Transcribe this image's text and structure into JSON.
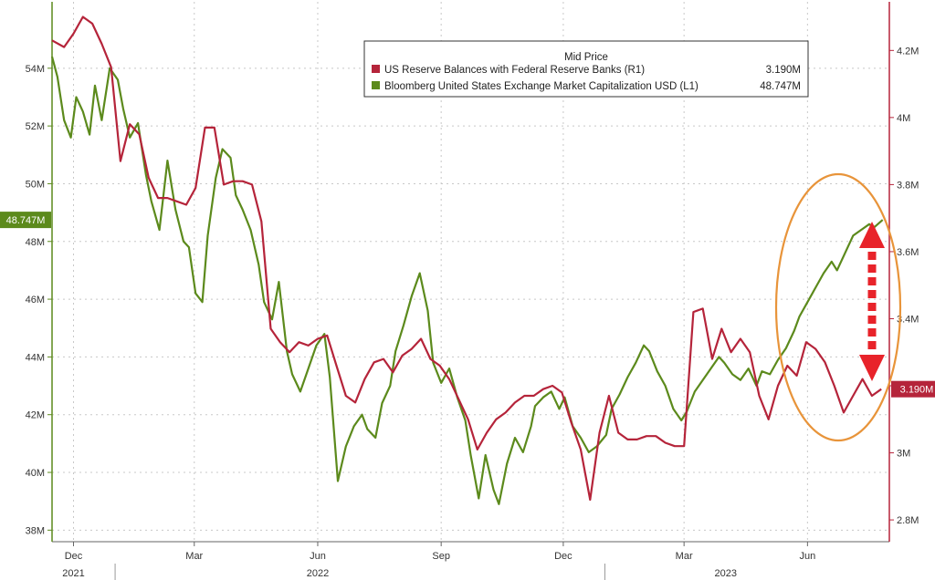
{
  "chart_data": {
    "type": "line",
    "legend": {
      "title": "Mid Price",
      "placement": "top-right",
      "entries": [
        {
          "label": "US Reserve Balances with Federal Reserve Banks  (R1)",
          "value": "3.190M",
          "color": "#b5243a"
        },
        {
          "label": "Bloomberg United States Exchange Market Capitalization USD  (L1)",
          "value": "48.747M",
          "color": "#5c8a1c"
        }
      ]
    },
    "left_axis": {
      "min": 37.6,
      "max": 56.3,
      "ticks": [
        38,
        40,
        42,
        44,
        46,
        48,
        50,
        52,
        54
      ],
      "tick_labels": [
        "38M",
        "40M",
        "42M",
        "44M",
        "46M",
        "48M",
        "50M",
        "52M",
        "54M"
      ],
      "last_value": 48.747,
      "last_label": "48.747M",
      "color": "#5c8a1c"
    },
    "right_axis": {
      "min": 2.735,
      "max": 4.345,
      "ticks": [
        2.8,
        3.0,
        3.2,
        3.4,
        3.6,
        3.8,
        4.0,
        4.2
      ],
      "tick_labels": [
        "2.8M",
        "3M",
        "",
        "3.4M",
        "3.6M",
        "3.8M",
        "4M",
        "4.2M"
      ],
      "last_value": 3.19,
      "last_label": "3.190M",
      "color": "#b5243a"
    },
    "x_axis": {
      "start": "2021-11-15",
      "end": "2023-08-01",
      "month_ticks": [
        {
          "date": "2021-12-01",
          "label": "Dec"
        },
        {
          "date": "2022-03-01",
          "label": "Mar"
        },
        {
          "date": "2022-06-01",
          "label": "Jun"
        },
        {
          "date": "2022-09-01",
          "label": "Sep"
        },
        {
          "date": "2022-12-01",
          "label": "Dec"
        },
        {
          "date": "2023-03-01",
          "label": "Mar"
        },
        {
          "date": "2023-06-01",
          "label": "Jun"
        }
      ],
      "year_labels": [
        {
          "date": "2021-12-01",
          "label": "2021"
        },
        {
          "date": "2022-06-01",
          "label": "2022"
        },
        {
          "date": "2023-04-01",
          "label": "2023"
        }
      ],
      "year_dividers": [
        "2022-01-01",
        "2023-01-01"
      ]
    },
    "grid": true,
    "series": [
      {
        "name": "Bloomberg United States Exchange Market Capitalization USD",
        "axis": "left",
        "color": "#5c8a1c",
        "points": [
          [
            "2021-11-15",
            54.4
          ],
          [
            "2021-11-19",
            53.7
          ],
          [
            "2021-11-24",
            52.2
          ],
          [
            "2021-11-29",
            51.6
          ],
          [
            "2021-12-03",
            53.0
          ],
          [
            "2021-12-08",
            52.5
          ],
          [
            "2021-12-13",
            51.7
          ],
          [
            "2021-12-17",
            53.4
          ],
          [
            "2021-12-22",
            52.2
          ],
          [
            "2021-12-28",
            54.0
          ],
          [
            "2022-01-03",
            53.6
          ],
          [
            "2022-01-07",
            52.6
          ],
          [
            "2022-01-12",
            51.6
          ],
          [
            "2022-01-18",
            52.1
          ],
          [
            "2022-01-24",
            50.3
          ],
          [
            "2022-01-28",
            49.4
          ],
          [
            "2022-02-03",
            48.4
          ],
          [
            "2022-02-09",
            50.8
          ],
          [
            "2022-02-15",
            49.1
          ],
          [
            "2022-02-21",
            48.0
          ],
          [
            "2022-02-25",
            47.8
          ],
          [
            "2022-03-02",
            46.2
          ],
          [
            "2022-03-07",
            45.9
          ],
          [
            "2022-03-11",
            48.2
          ],
          [
            "2022-03-17",
            50.2
          ],
          [
            "2022-03-22",
            51.2
          ],
          [
            "2022-03-28",
            50.9
          ],
          [
            "2022-04-01",
            49.6
          ],
          [
            "2022-04-06",
            49.1
          ],
          [
            "2022-04-12",
            48.4
          ],
          [
            "2022-04-18",
            47.2
          ],
          [
            "2022-04-22",
            45.9
          ],
          [
            "2022-04-28",
            45.3
          ],
          [
            "2022-05-03",
            46.6
          ],
          [
            "2022-05-09",
            44.2
          ],
          [
            "2022-05-13",
            43.4
          ],
          [
            "2022-05-19",
            42.8
          ],
          [
            "2022-05-25",
            43.6
          ],
          [
            "2022-05-31",
            44.4
          ],
          [
            "2022-06-06",
            44.8
          ],
          [
            "2022-06-10",
            43.3
          ],
          [
            "2022-06-16",
            39.7
          ],
          [
            "2022-06-22",
            40.9
          ],
          [
            "2022-06-28",
            41.6
          ],
          [
            "2022-07-04",
            42.0
          ],
          [
            "2022-07-08",
            41.5
          ],
          [
            "2022-07-14",
            41.2
          ],
          [
            "2022-07-19",
            42.4
          ],
          [
            "2022-07-25",
            43.0
          ],
          [
            "2022-07-29",
            44.2
          ],
          [
            "2022-08-04",
            45.1
          ],
          [
            "2022-08-10",
            46.1
          ],
          [
            "2022-08-16",
            46.9
          ],
          [
            "2022-08-22",
            45.6
          ],
          [
            "2022-08-26",
            43.8
          ],
          [
            "2022-09-01",
            43.1
          ],
          [
            "2022-09-07",
            43.6
          ],
          [
            "2022-09-13",
            42.6
          ],
          [
            "2022-09-19",
            41.8
          ],
          [
            "2022-09-23",
            40.6
          ],
          [
            "2022-09-29",
            39.1
          ],
          [
            "2022-10-04",
            40.6
          ],
          [
            "2022-10-10",
            39.4
          ],
          [
            "2022-10-14",
            38.9
          ],
          [
            "2022-10-20",
            40.3
          ],
          [
            "2022-10-26",
            41.2
          ],
          [
            "2022-11-01",
            40.7
          ],
          [
            "2022-11-07",
            41.6
          ],
          [
            "2022-11-10",
            42.3
          ],
          [
            "2022-11-16",
            42.6
          ],
          [
            "2022-11-22",
            42.8
          ],
          [
            "2022-11-28",
            42.2
          ],
          [
            "2022-12-02",
            42.6
          ],
          [
            "2022-12-08",
            41.6
          ],
          [
            "2022-12-14",
            41.2
          ],
          [
            "2022-12-20",
            40.7
          ],
          [
            "2022-12-26",
            40.9
          ],
          [
            "2023-01-02",
            41.3
          ],
          [
            "2023-01-06",
            42.2
          ],
          [
            "2023-01-12",
            42.7
          ],
          [
            "2023-01-18",
            43.3
          ],
          [
            "2023-01-24",
            43.8
          ],
          [
            "2023-01-30",
            44.4
          ],
          [
            "2023-02-03",
            44.2
          ],
          [
            "2023-02-09",
            43.5
          ],
          [
            "2023-02-15",
            43.0
          ],
          [
            "2023-02-21",
            42.2
          ],
          [
            "2023-02-27",
            41.8
          ],
          [
            "2023-03-03",
            42.1
          ],
          [
            "2023-03-09",
            42.8
          ],
          [
            "2023-03-15",
            43.2
          ],
          [
            "2023-03-21",
            43.6
          ],
          [
            "2023-03-27",
            44.0
          ],
          [
            "2023-03-31",
            43.8
          ],
          [
            "2023-04-06",
            43.4
          ],
          [
            "2023-04-12",
            43.2
          ],
          [
            "2023-04-18",
            43.6
          ],
          [
            "2023-04-24",
            43.0
          ],
          [
            "2023-04-28",
            43.5
          ],
          [
            "2023-05-04",
            43.4
          ],
          [
            "2023-05-10",
            43.9
          ],
          [
            "2023-05-16",
            44.3
          ],
          [
            "2023-05-22",
            44.9
          ],
          [
            "2023-05-26",
            45.4
          ],
          [
            "2023-06-01",
            45.9
          ],
          [
            "2023-06-07",
            46.4
          ],
          [
            "2023-06-13",
            46.9
          ],
          [
            "2023-06-19",
            47.3
          ],
          [
            "2023-06-23",
            47.0
          ],
          [
            "2023-06-29",
            47.6
          ],
          [
            "2023-07-05",
            48.2
          ],
          [
            "2023-07-11",
            48.4
          ],
          [
            "2023-07-17",
            48.6
          ],
          [
            "2023-07-21",
            48.5
          ],
          [
            "2023-07-27",
            48.747
          ]
        ]
      },
      {
        "name": "US Reserve Balances with Federal Reserve Banks",
        "axis": "right",
        "color": "#b5243a",
        "points": [
          [
            "2021-11-15",
            4.23
          ],
          [
            "2021-11-24",
            4.21
          ],
          [
            "2021-12-01",
            4.25
          ],
          [
            "2021-12-08",
            4.3
          ],
          [
            "2021-12-15",
            4.28
          ],
          [
            "2021-12-22",
            4.22
          ],
          [
            "2021-12-29",
            4.15
          ],
          [
            "2022-01-05",
            3.87
          ],
          [
            "2022-01-12",
            3.98
          ],
          [
            "2022-01-19",
            3.95
          ],
          [
            "2022-01-26",
            3.82
          ],
          [
            "2022-02-02",
            3.76
          ],
          [
            "2022-02-09",
            3.76
          ],
          [
            "2022-02-16",
            3.75
          ],
          [
            "2022-02-23",
            3.74
          ],
          [
            "2022-03-02",
            3.79
          ],
          [
            "2022-03-09",
            3.97
          ],
          [
            "2022-03-16",
            3.97
          ],
          [
            "2022-03-23",
            3.8
          ],
          [
            "2022-03-30",
            3.81
          ],
          [
            "2022-04-06",
            3.81
          ],
          [
            "2022-04-13",
            3.8
          ],
          [
            "2022-04-20",
            3.69
          ],
          [
            "2022-04-27",
            3.37
          ],
          [
            "2022-05-04",
            3.33
          ],
          [
            "2022-05-11",
            3.3
          ],
          [
            "2022-05-18",
            3.33
          ],
          [
            "2022-05-25",
            3.32
          ],
          [
            "2022-06-01",
            3.34
          ],
          [
            "2022-06-08",
            3.35
          ],
          [
            "2022-06-15",
            3.26
          ],
          [
            "2022-06-22",
            3.17
          ],
          [
            "2022-06-29",
            3.15
          ],
          [
            "2022-07-06",
            3.22
          ],
          [
            "2022-07-13",
            3.27
          ],
          [
            "2022-07-20",
            3.28
          ],
          [
            "2022-07-27",
            3.24
          ],
          [
            "2022-08-03",
            3.29
          ],
          [
            "2022-08-10",
            3.31
          ],
          [
            "2022-08-17",
            3.34
          ],
          [
            "2022-08-24",
            3.28
          ],
          [
            "2022-08-31",
            3.26
          ],
          [
            "2022-09-07",
            3.22
          ],
          [
            "2022-09-14",
            3.16
          ],
          [
            "2022-09-21",
            3.1
          ],
          [
            "2022-09-28",
            3.01
          ],
          [
            "2022-10-05",
            3.06
          ],
          [
            "2022-10-12",
            3.1
          ],
          [
            "2022-10-19",
            3.12
          ],
          [
            "2022-10-26",
            3.15
          ],
          [
            "2022-11-02",
            3.17
          ],
          [
            "2022-11-09",
            3.17
          ],
          [
            "2022-11-16",
            3.19
          ],
          [
            "2022-11-23",
            3.2
          ],
          [
            "2022-11-30",
            3.18
          ],
          [
            "2022-12-07",
            3.09
          ],
          [
            "2022-12-14",
            3.01
          ],
          [
            "2022-12-21",
            2.86
          ],
          [
            "2022-12-28",
            3.06
          ],
          [
            "2023-01-04",
            3.17
          ],
          [
            "2023-01-11",
            3.06
          ],
          [
            "2023-01-18",
            3.04
          ],
          [
            "2023-01-25",
            3.04
          ],
          [
            "2023-02-01",
            3.05
          ],
          [
            "2023-02-08",
            3.05
          ],
          [
            "2023-02-15",
            3.03
          ],
          [
            "2023-02-22",
            3.02
          ],
          [
            "2023-03-01",
            3.02
          ],
          [
            "2023-03-08",
            3.42
          ],
          [
            "2023-03-15",
            3.43
          ],
          [
            "2023-03-22",
            3.28
          ],
          [
            "2023-03-29",
            3.37
          ],
          [
            "2023-04-05",
            3.3
          ],
          [
            "2023-04-12",
            3.34
          ],
          [
            "2023-04-19",
            3.3
          ],
          [
            "2023-04-26",
            3.17
          ],
          [
            "2023-05-03",
            3.1
          ],
          [
            "2023-05-10",
            3.2
          ],
          [
            "2023-05-17",
            3.26
          ],
          [
            "2023-05-24",
            3.23
          ],
          [
            "2023-05-31",
            3.33
          ],
          [
            "2023-06-07",
            3.31
          ],
          [
            "2023-06-14",
            3.27
          ],
          [
            "2023-06-21",
            3.2
          ],
          [
            "2023-06-28",
            3.12
          ],
          [
            "2023-07-05",
            3.17
          ],
          [
            "2023-07-12",
            3.22
          ],
          [
            "2023-07-19",
            3.17
          ],
          [
            "2023-07-26",
            3.19
          ]
        ]
      }
    ]
  }
}
